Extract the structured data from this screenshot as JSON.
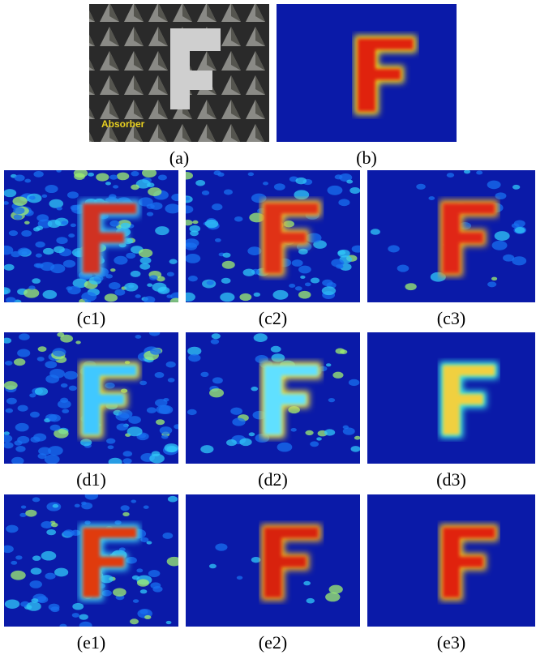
{
  "panels": [
    {
      "label": "(a)",
      "annotation": "Absorber"
    },
    {
      "label": "(b)"
    },
    {
      "label": "(c1)"
    },
    {
      "label": "(c2)"
    },
    {
      "label": "(c3)"
    },
    {
      "label": "(d1)"
    },
    {
      "label": "(d2)"
    },
    {
      "label": "(d3)"
    },
    {
      "label": "(e1)"
    },
    {
      "label": "(e2)"
    },
    {
      "label": "(e3)"
    }
  ]
}
